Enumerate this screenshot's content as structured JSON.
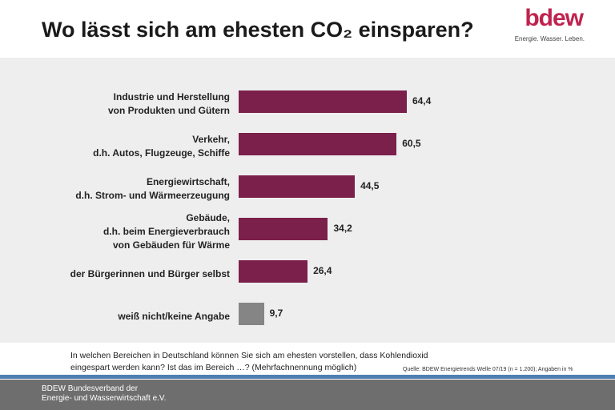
{
  "chart_data": {
    "type": "bar",
    "orientation": "horizontal",
    "title": "Wo lässt sich am ehesten CO₂ einsparen?",
    "categories": [
      "Industrie und Herstellung\nvon Produkten und Gütern",
      "Verkehr,\nd.h. Autos, Flugzeuge, Schiffe",
      "Energiewirtschaft,\nd.h. Strom- und Wärmeerzeugung",
      "Gebäude,\nd.h. beim Energieverbrauch\nvon Gebäuden für Wärme",
      "der Bürgerinnen und Bürger selbst",
      "weiß nicht/keine Angabe"
    ],
    "values": [
      64.4,
      60.5,
      44.5,
      34.2,
      26.4,
      9.7
    ],
    "value_labels": [
      "64,4",
      "60,5",
      "44,5",
      "34,2",
      "26,4",
      "9,7"
    ],
    "colors": [
      "#7b1f4b",
      "#7b1f4b",
      "#7b1f4b",
      "#7b1f4b",
      "#7b1f4b",
      "#858585"
    ],
    "note": "In welchen Bereichen in Deutschland können Sie sich am ehesten vorstellen, dass Kohlendioxid\neingespart werden kann? Ist das im Bereich  …? (Mehrfachnennung möglich)",
    "source": "Quelle:  BDEW Energietrends   Welle 07/19  (n = 1.200); Angaben  in %"
  },
  "logo": {
    "name": "bdew",
    "tagline": "Energie. Wasser. Leben."
  },
  "footer": "BDEW Bundesverband der\nEnergie- und Wasserwirtschaft e.V."
}
